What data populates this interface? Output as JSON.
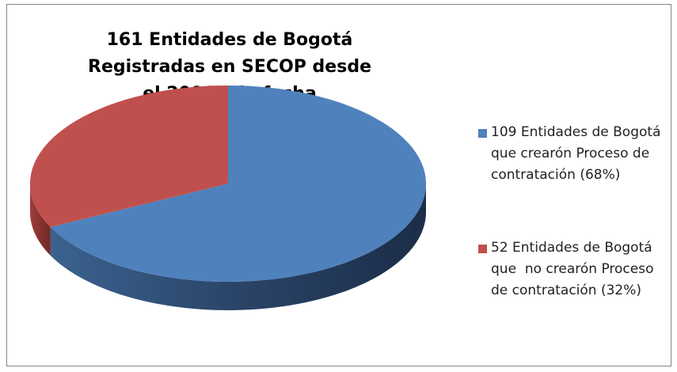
{
  "chart_data": {
    "type": "pie",
    "title": "161 Entidades de Bogotá Registradas en SECOP desde el 2006 a la fecha",
    "categories": [
      "109 Entidades de Bogotá que crearón Proceso de contratación (68%)",
      "52 Entidades de Bogotá que  no crearón Proceso de contratación (32%)"
    ],
    "values": [
      109,
      52
    ],
    "colors": [
      "#4f81bd",
      "#c0504d"
    ],
    "legend": "right"
  }
}
